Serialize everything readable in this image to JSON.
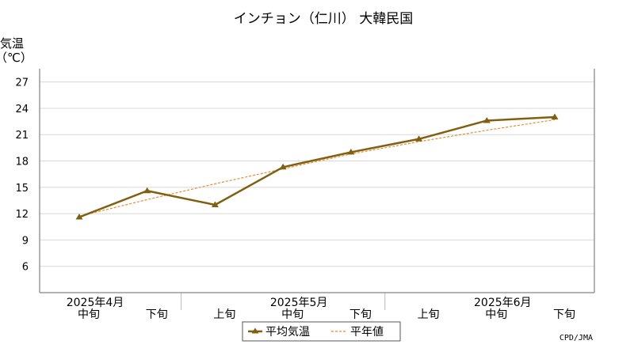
{
  "chart_data": {
    "type": "line",
    "title": "インチョン（仁川） 大韓民国",
    "ylabel": "気温",
    "yunit": "（℃）",
    "ylim": [
      3,
      28.5
    ],
    "yticks": [
      6,
      9,
      12,
      15,
      18,
      21,
      24,
      27
    ],
    "grid": true,
    "x": [
      "中旬",
      "下旬",
      "上旬",
      "中旬",
      "下旬",
      "上旬",
      "中旬",
      "下旬"
    ],
    "month_labels": [
      {
        "label": "2025年4月",
        "index": 0
      },
      {
        "label": "2025年5月",
        "index": 3
      },
      {
        "label": "2025年6月",
        "index": 6
      }
    ],
    "series": [
      {
        "name": "平均気温",
        "color": "#806010",
        "style": "solid-marker",
        "values": [
          11.6,
          14.6,
          13.0,
          17.3,
          19.0,
          20.5,
          22.6,
          23.0
        ]
      },
      {
        "name": "平年値",
        "color": "#ee8833",
        "style": "dashed",
        "values": [
          11.7,
          13.6,
          15.4,
          17.1,
          18.8,
          20.2,
          21.5,
          22.7
        ]
      }
    ],
    "legend_position": "bottom-center",
    "credit": "CPD/JMA"
  }
}
